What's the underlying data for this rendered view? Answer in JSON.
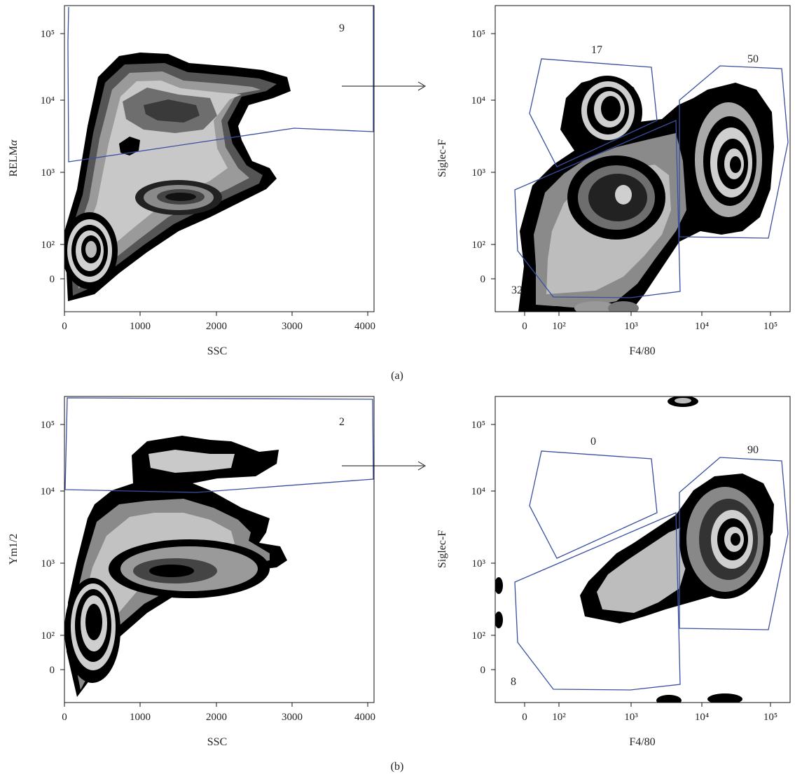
{
  "colors": {
    "gate": "#3a4fa0",
    "axis": "#111111",
    "density_scale": [
      "#cfcfcf",
      "#a9a9a9",
      "#8a8a8a",
      "#666666",
      "#444444",
      "#222222",
      "#000000"
    ]
  },
  "panels": [
    {
      "label": "(a)"
    },
    {
      "label": "(b)"
    }
  ],
  "chart_data": [
    {
      "type": "heatmap",
      "plot_style": "density zone plot",
      "panel": "(a)",
      "xlabel": "SSC",
      "ylabel": "RELMα",
      "ylabel_main": "RELM",
      "ylabel_greek": "α",
      "x_ticks": [
        "0",
        "1000",
        "2000",
        "3000",
        "4000"
      ],
      "y_ticks": [
        "0",
        "10²",
        "10³",
        "10⁴",
        "10⁵"
      ],
      "xlim": [
        0,
        4096
      ],
      "yscale": "biexponential",
      "gates": [
        {
          "label": "9"
        }
      ],
      "populations": [
        {
          "x": 300,
          "y": 80,
          "density": "high"
        },
        {
          "x": 1400,
          "y": 500,
          "density": "high"
        },
        {
          "x": 1300,
          "y": 10000,
          "density": "medium"
        }
      ]
    },
    {
      "type": "heatmap",
      "plot_style": "density zone plot",
      "panel": "(a)",
      "xlabel": "F4/80",
      "ylabel": "Siglec-F",
      "x_ticks": [
        "0",
        "10²",
        "10³",
        "10⁴",
        "10⁵"
      ],
      "y_ticks": [
        "0",
        "10²",
        "10³",
        "10⁴",
        "10⁵"
      ],
      "xscale": "biexponential",
      "yscale": "biexponential",
      "gates": [
        {
          "label": "17"
        },
        {
          "label": "50"
        },
        {
          "label": "32"
        }
      ],
      "populations": [
        {
          "x": 600,
          "y": 8000,
          "density": "high"
        },
        {
          "x": 30000,
          "y": 1200,
          "density": "high"
        },
        {
          "x": 700,
          "y": 450,
          "density": "high"
        }
      ]
    },
    {
      "type": "heatmap",
      "plot_style": "density zone plot",
      "panel": "(b)",
      "xlabel": "SSC",
      "ylabel": "Ym1/2",
      "x_ticks": [
        "0",
        "1000",
        "2000",
        "3000",
        "4000"
      ],
      "y_ticks": [
        "0",
        "10²",
        "10³",
        "10⁴",
        "10⁵"
      ],
      "xlim": [
        0,
        4096
      ],
      "yscale": "biexponential",
      "gates": [
        {
          "label": "2"
        }
      ],
      "populations": [
        {
          "x": 300,
          "y": 200,
          "density": "high"
        },
        {
          "x": 1500,
          "y": 700,
          "density": "high"
        },
        {
          "x": 1700,
          "y": 30000,
          "density": "medium"
        }
      ]
    },
    {
      "type": "heatmap",
      "plot_style": "density zone plot",
      "panel": "(b)",
      "xlabel": "F4/80",
      "ylabel": "Siglec-F",
      "x_ticks": [
        "0",
        "10²",
        "10³",
        "10⁴",
        "10⁵"
      ],
      "y_ticks": [
        "0",
        "10²",
        "10³",
        "10⁴",
        "10⁵"
      ],
      "xscale": "biexponential",
      "yscale": "biexponential",
      "gates": [
        {
          "label": "0"
        },
        {
          "label": "90"
        },
        {
          "label": "8"
        }
      ],
      "populations": [
        {
          "x": 20000,
          "y": 2000,
          "density": "high"
        },
        {
          "x": 1000,
          "y": 700,
          "density": "medium"
        }
      ]
    }
  ]
}
